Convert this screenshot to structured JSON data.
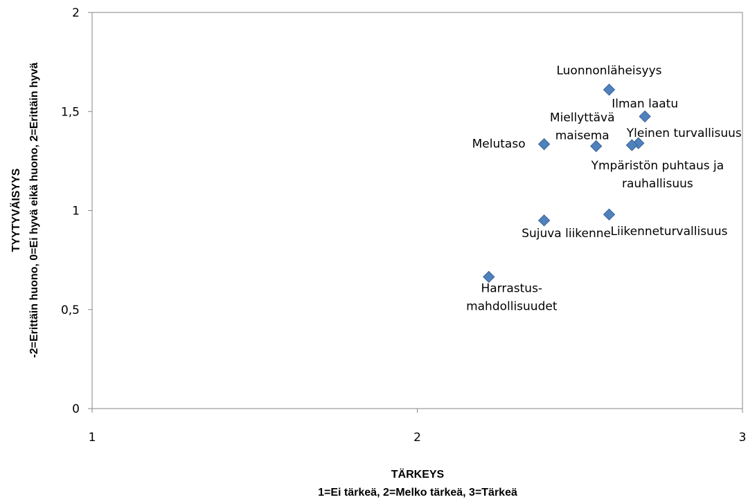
{
  "chart_data": {
    "type": "scatter",
    "xlabel": "TÄRKEYS",
    "xlabel2": "1=Ei tärkeä, 2=Melko tärkeä, 3=Tärkeä",
    "ylabel": "TYYTYVÄISYYS",
    "ylabel2": "-2=Erittäin huono, 0=Ei hyvä eikä huono, 2=Erittäin hyvä",
    "xlim": [
      1,
      3
    ],
    "ylim": [
      0,
      2
    ],
    "xticks": [
      1,
      2,
      3
    ],
    "yticks": [
      0,
      0.5,
      1,
      1.5,
      2
    ],
    "xtick_labels": [
      "1",
      "2",
      "3"
    ],
    "ytick_labels": [
      "0",
      "0,5",
      "1",
      "1,5",
      "2"
    ],
    "grid": false,
    "marker_color": "#4F81BD",
    "marker_edge_color": "#3A6496",
    "points": [
      {
        "label": [
          "Luonnonläheisyys"
        ],
        "x": 2.59,
        "y": 1.61
      },
      {
        "label": [
          "Ilman laatu"
        ],
        "x": 2.7,
        "y": 1.475
      },
      {
        "label": [
          "Miellyttävä",
          "maisema"
        ],
        "x": 2.55,
        "y": 1.325
      },
      {
        "label": [
          "Melutaso"
        ],
        "x": 2.39,
        "y": 1.335
      },
      {
        "label": [
          "Yleinen turvallisuus"
        ],
        "x": 2.68,
        "y": 1.34
      },
      {
        "label": [
          "Ympäristön puhtaus ja",
          "rauhallisuus"
        ],
        "x": 2.66,
        "y": 1.33
      },
      {
        "label": [
          "Liikenneturvallisuus"
        ],
        "x": 2.59,
        "y": 0.98
      },
      {
        "label": [
          "Sujuva liikenne"
        ],
        "x": 2.39,
        "y": 0.95
      },
      {
        "label": [
          "Harrastus-",
          "mahdollisuudet"
        ],
        "x": 2.22,
        "y": 0.665
      }
    ]
  }
}
